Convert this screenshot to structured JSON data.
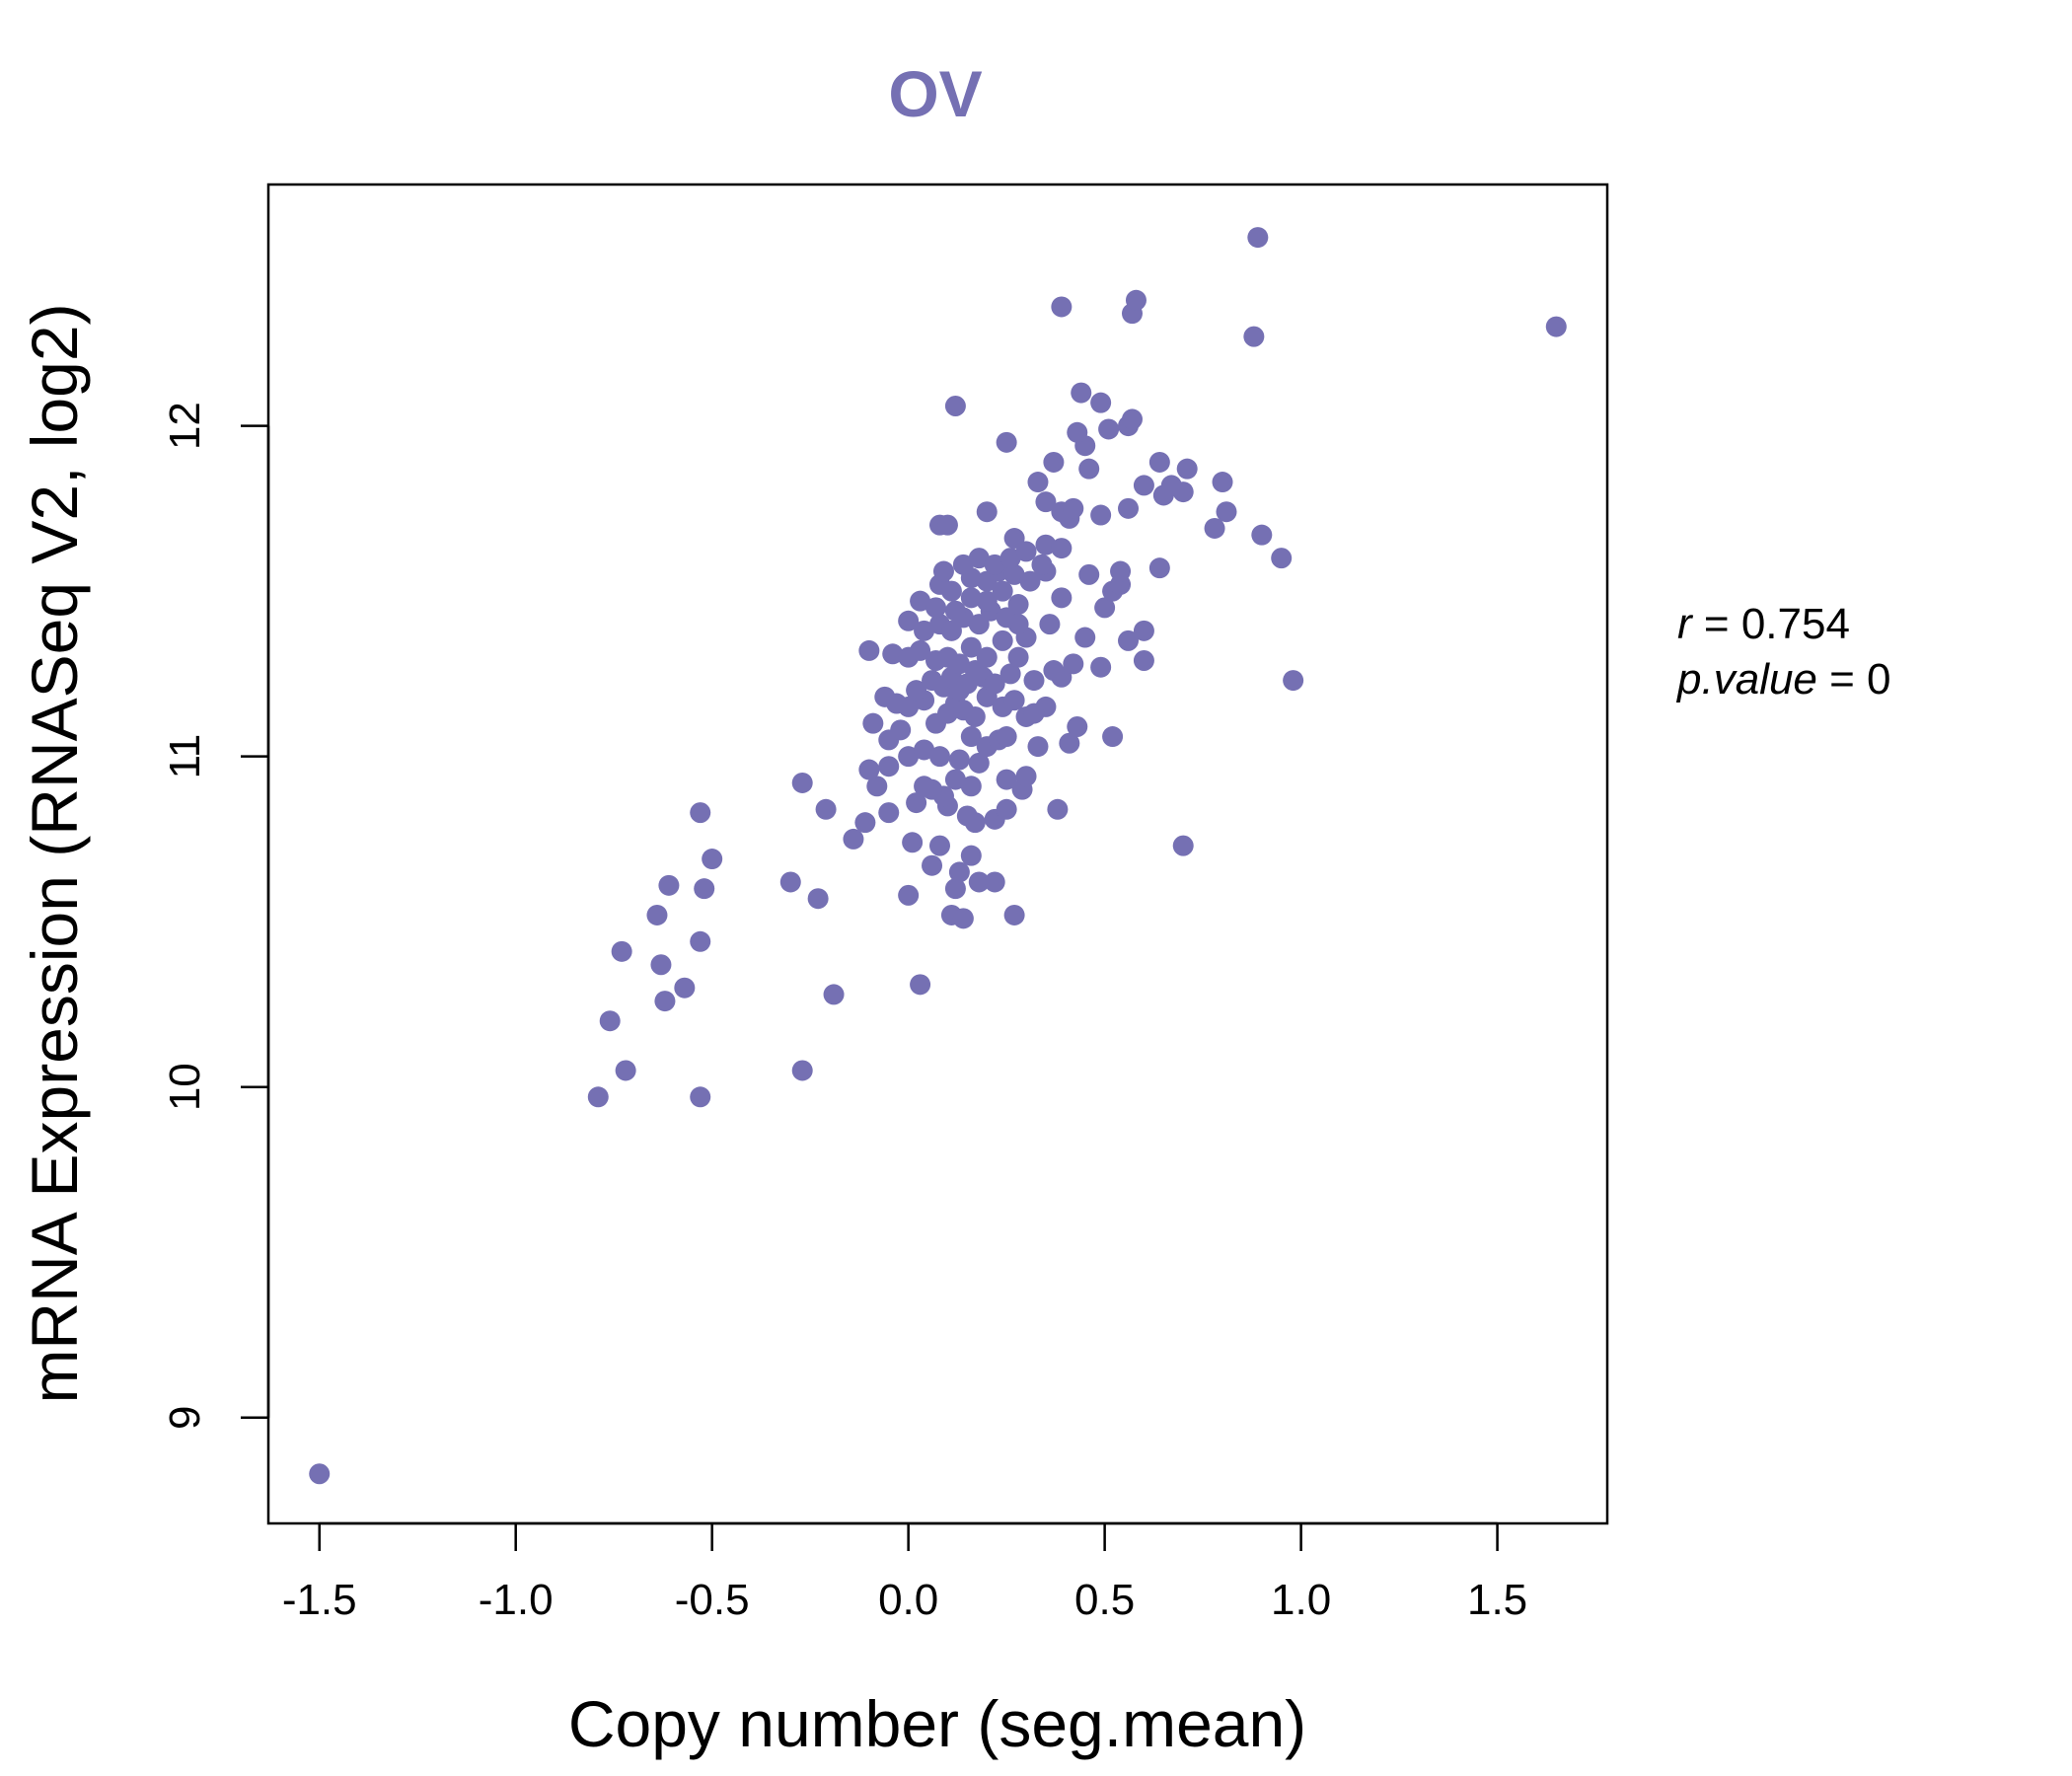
{
  "chart_data": {
    "type": "scatter",
    "title": "OV",
    "xlabel": "Copy number (seg.mean)",
    "ylabel": "mRNA Expression (RNASeq V2, log2)",
    "xlim": [
      -1.63,
      1.78
    ],
    "ylim": [
      8.68,
      12.73
    ],
    "xticks": [
      -1.5,
      -1.0,
      -0.5,
      0.0,
      0.5,
      1.0,
      1.5
    ],
    "xtick_labels": [
      "-1.5",
      "-1.0",
      "-0.5",
      "0.0",
      "0.5",
      "1.0",
      "1.5"
    ],
    "yticks": [
      9,
      10,
      11,
      12
    ],
    "ytick_labels": [
      "9",
      "10",
      "11",
      "12"
    ],
    "point_color": "#7570b3",
    "stats": {
      "r_label": "r",
      "r_value": "0.754",
      "p_label": "p.value",
      "p_value": "0"
    },
    "points": [
      [
        -1.5,
        8.83
      ],
      [
        -0.79,
        9.97
      ],
      [
        -0.53,
        9.97
      ],
      [
        -0.72,
        10.05
      ],
      [
        -0.76,
        10.2
      ],
      [
        -0.62,
        10.26
      ],
      [
        -0.57,
        10.3
      ],
      [
        -0.63,
        10.37
      ],
      [
        -0.73,
        10.41
      ],
      [
        -0.53,
        10.44
      ],
      [
        -0.64,
        10.52
      ],
      [
        -0.61,
        10.61
      ],
      [
        -0.52,
        10.6
      ],
      [
        -0.5,
        10.69
      ],
      [
        -0.53,
        10.83
      ],
      [
        -0.27,
        10.05
      ],
      [
        -0.19,
        10.28
      ],
      [
        -0.3,
        10.62
      ],
      [
        -0.23,
        10.57
      ],
      [
        -0.14,
        10.75
      ],
      [
        -0.21,
        10.84
      ],
      [
        -0.27,
        10.92
      ],
      [
        -0.11,
        10.8
      ],
      [
        -0.08,
        10.91
      ],
      [
        -0.1,
        10.96
      ],
      [
        -0.05,
        10.83
      ],
      [
        0.03,
        10.31
      ],
      [
        0.0,
        10.58
      ],
      [
        0.06,
        10.67
      ],
      [
        0.01,
        10.74
      ],
      [
        0.02,
        10.86
      ],
      [
        0.08,
        10.73
      ],
      [
        0.12,
        10.6
      ],
      [
        0.11,
        10.52
      ],
      [
        0.14,
        10.51
      ],
      [
        0.13,
        10.65
      ],
      [
        0.16,
        10.7
      ],
      [
        0.18,
        10.62
      ],
      [
        0.22,
        10.62
      ],
      [
        0.27,
        10.52
      ],
      [
        0.1,
        10.85
      ],
      [
        0.15,
        10.82
      ],
      [
        0.17,
        10.8
      ],
      [
        0.22,
        10.81
      ],
      [
        0.25,
        10.84
      ],
      [
        0.09,
        10.88
      ],
      [
        0.12,
        10.93
      ],
      [
        0.06,
        10.9
      ],
      [
        0.04,
        10.91
      ],
      [
        0.16,
        10.91
      ],
      [
        0.25,
        10.93
      ],
      [
        0.29,
        10.9
      ],
      [
        0.3,
        10.94
      ],
      [
        0.38,
        10.84
      ],
      [
        0.7,
        10.73
      ],
      [
        -0.05,
        10.97
      ],
      [
        0.0,
        11.0
      ],
      [
        0.04,
        11.02
      ],
      [
        0.08,
        11.0
      ],
      [
        0.13,
        10.99
      ],
      [
        0.18,
        10.98
      ],
      [
        0.2,
        11.03
      ],
      [
        0.16,
        11.06
      ],
      [
        0.23,
        11.05
      ],
      [
        0.25,
        11.06
      ],
      [
        0.33,
        11.03
      ],
      [
        0.41,
        11.04
      ],
      [
        0.43,
        11.09
      ],
      [
        0.52,
        11.06
      ],
      [
        0.3,
        11.12
      ],
      [
        -0.09,
        11.1
      ],
      [
        -0.05,
        11.05
      ],
      [
        -0.02,
        11.08
      ],
      [
        0.0,
        11.15
      ],
      [
        0.04,
        11.17
      ],
      [
        0.07,
        11.1
      ],
      [
        0.1,
        11.13
      ],
      [
        0.12,
        11.16
      ],
      [
        0.14,
        11.14
      ],
      [
        0.17,
        11.12
      ],
      [
        0.2,
        11.18
      ],
      [
        0.24,
        11.15
      ],
      [
        0.27,
        11.17
      ],
      [
        0.35,
        11.15
      ],
      [
        0.32,
        11.13
      ],
      [
        -0.06,
        11.18
      ],
      [
        -0.03,
        11.16
      ],
      [
        0.02,
        11.2
      ],
      [
        0.06,
        11.23
      ],
      [
        0.09,
        11.21
      ],
      [
        0.11,
        11.24
      ],
      [
        0.13,
        11.2
      ],
      [
        0.15,
        11.22
      ],
      [
        0.17,
        11.26
      ],
      [
        0.19,
        11.24
      ],
      [
        0.22,
        11.22
      ],
      [
        0.26,
        11.25
      ],
      [
        0.32,
        11.23
      ],
      [
        0.39,
        11.24
      ],
      [
        0.37,
        11.26
      ],
      [
        0.42,
        11.28
      ],
      [
        0.49,
        11.27
      ],
      [
        0.6,
        11.29
      ],
      [
        0.56,
        11.35
      ],
      [
        0.6,
        11.38
      ],
      [
        0.98,
        11.23
      ],
      [
        -0.1,
        11.32
      ],
      [
        -0.04,
        11.31
      ],
      [
        0.0,
        11.3
      ],
      [
        0.03,
        11.32
      ],
      [
        0.07,
        11.29
      ],
      [
        0.1,
        11.3
      ],
      [
        0.13,
        11.28
      ],
      [
        0.16,
        11.33
      ],
      [
        0.2,
        11.3
      ],
      [
        0.24,
        11.35
      ],
      [
        0.28,
        11.3
      ],
      [
        0.3,
        11.36
      ],
      [
        0.45,
        11.36
      ],
      [
        0.0,
        11.41
      ],
      [
        0.04,
        11.38
      ],
      [
        0.08,
        11.4
      ],
      [
        0.11,
        11.38
      ],
      [
        0.14,
        11.42
      ],
      [
        0.18,
        11.4
      ],
      [
        0.21,
        11.44
      ],
      [
        0.25,
        11.42
      ],
      [
        0.28,
        11.4
      ],
      [
        0.36,
        11.4
      ],
      [
        0.5,
        11.45
      ],
      [
        0.03,
        11.47
      ],
      [
        0.07,
        11.45
      ],
      [
        0.12,
        11.44
      ],
      [
        0.16,
        11.48
      ],
      [
        0.2,
        11.47
      ],
      [
        0.24,
        11.5
      ],
      [
        0.28,
        11.46
      ],
      [
        0.39,
        11.48
      ],
      [
        0.52,
        11.5
      ],
      [
        0.54,
        11.52
      ],
      [
        0.08,
        11.52
      ],
      [
        0.11,
        11.5
      ],
      [
        0.16,
        11.54
      ],
      [
        0.2,
        11.53
      ],
      [
        0.23,
        11.56
      ],
      [
        0.27,
        11.55
      ],
      [
        0.31,
        11.53
      ],
      [
        0.35,
        11.56
      ],
      [
        0.46,
        11.55
      ],
      [
        0.54,
        11.56
      ],
      [
        0.09,
        11.56
      ],
      [
        0.14,
        11.58
      ],
      [
        0.18,
        11.6
      ],
      [
        0.22,
        11.58
      ],
      [
        0.26,
        11.6
      ],
      [
        0.3,
        11.62
      ],
      [
        0.34,
        11.58
      ],
      [
        0.64,
        11.57
      ],
      [
        0.95,
        11.6
      ],
      [
        0.27,
        11.66
      ],
      [
        0.35,
        11.64
      ],
      [
        0.39,
        11.63
      ],
      [
        0.9,
        11.67
      ],
      [
        0.08,
        11.7
      ],
      [
        0.1,
        11.7
      ],
      [
        0.41,
        11.72
      ],
      [
        0.78,
        11.69
      ],
      [
        0.81,
        11.74
      ],
      [
        0.2,
        11.74
      ],
      [
        0.39,
        11.74
      ],
      [
        0.42,
        11.75
      ],
      [
        0.49,
        11.73
      ],
      [
        0.56,
        11.75
      ],
      [
        0.35,
        11.77
      ],
      [
        0.33,
        11.83
      ],
      [
        0.65,
        11.79
      ],
      [
        0.67,
        11.82
      ],
      [
        0.7,
        11.8
      ],
      [
        0.6,
        11.82
      ],
      [
        0.8,
        11.83
      ],
      [
        0.37,
        11.89
      ],
      [
        0.46,
        11.87
      ],
      [
        0.64,
        11.89
      ],
      [
        0.71,
        11.87
      ],
      [
        0.25,
        11.95
      ],
      [
        0.45,
        11.94
      ],
      [
        0.43,
        11.98
      ],
      [
        0.51,
        11.99
      ],
      [
        0.56,
        12.0
      ],
      [
        0.57,
        12.02
      ],
      [
        0.12,
        12.06
      ],
      [
        0.44,
        12.1
      ],
      [
        0.49,
        12.07
      ],
      [
        0.39,
        12.36
      ],
      [
        0.57,
        12.34
      ],
      [
        0.58,
        12.38
      ],
      [
        0.88,
        12.27
      ],
      [
        0.89,
        12.57
      ],
      [
        1.65,
        12.3
      ]
    ]
  }
}
